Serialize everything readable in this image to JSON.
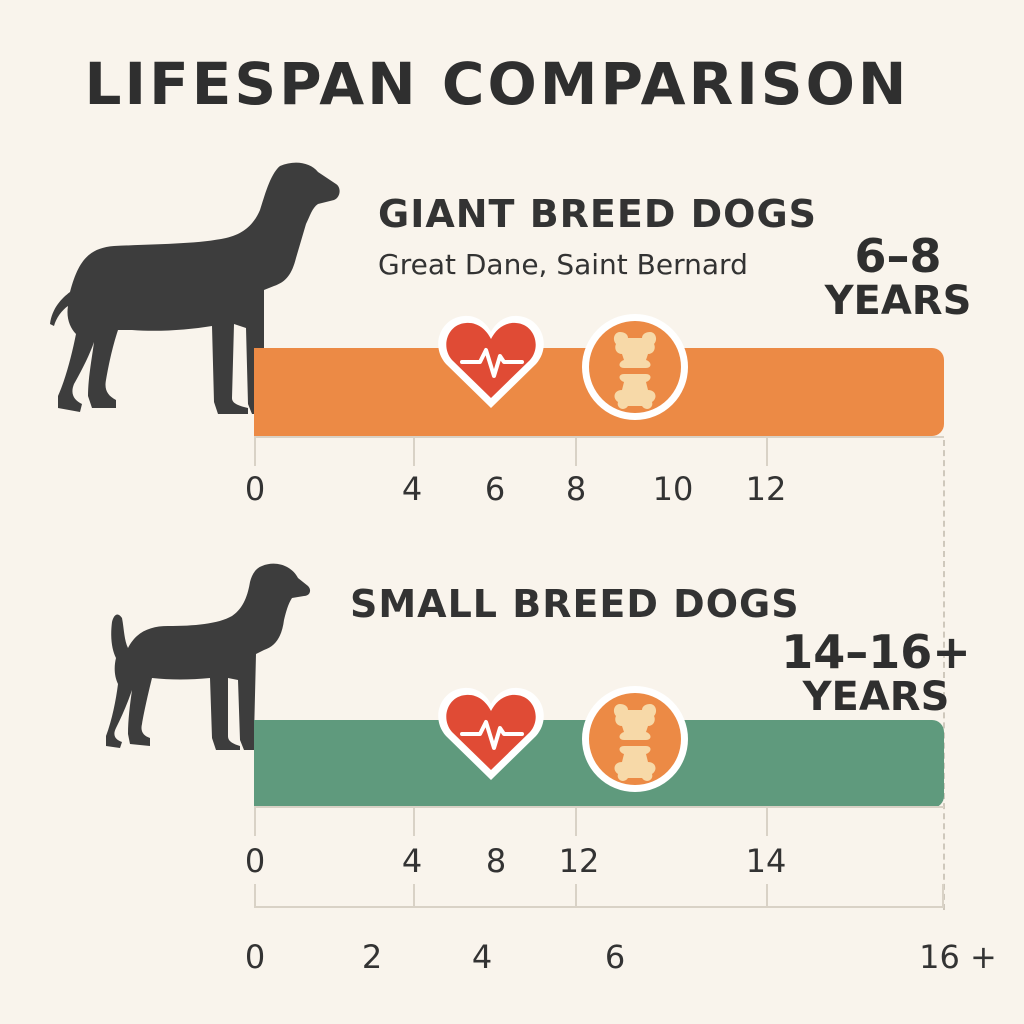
{
  "title": "LIFESPAN COMPARISON",
  "giant": {
    "heading": "GIANT BREED DOGS",
    "subheading": "Great Dane, Saint Bernard",
    "range": "6–8",
    "unit": "YEARS",
    "bar_color": "#ec8a45",
    "ticks": [
      "0",
      "4",
      "6",
      "8",
      "10",
      "12"
    ]
  },
  "small": {
    "heading": "SMALL BREED DOGS",
    "range": "14–16+",
    "unit": "YEARS",
    "bar_color": "#5f9a7d",
    "ticks": [
      "0",
      "4",
      "8",
      "12",
      "14"
    ]
  },
  "bottom_axis": {
    "ticks": [
      "0",
      "2",
      "4",
      "6",
      "16 +"
    ]
  },
  "icons": [
    "heart-pulse-icon",
    "joint-bone-icon"
  ],
  "colors": {
    "heart": "#e04b35",
    "joint_badge": "#ec8a45",
    "bone": "#f7d9a8",
    "silhouette": "#3d3d3d"
  }
}
